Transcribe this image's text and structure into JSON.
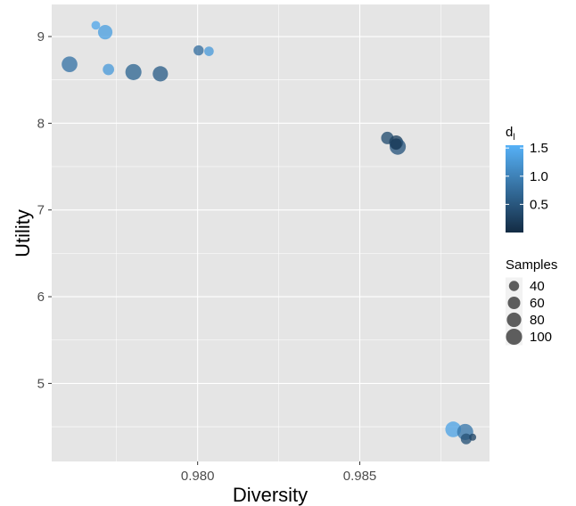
{
  "chart_data": {
    "type": "scatter",
    "xlabel": "Diversity",
    "ylabel": "Utility",
    "xlim": [
      0.9755,
      0.989
    ],
    "ylim": [
      4.1,
      9.37
    ],
    "x_ticks": [
      0.98,
      0.985
    ],
    "x_tick_labels": [
      "0.980",
      "0.985"
    ],
    "y_ticks": [
      5,
      6,
      7,
      8,
      9
    ],
    "y_tick_labels": [
      "5",
      "6",
      "7",
      "8",
      "9"
    ],
    "grid": true,
    "background": "#e5e5e5",
    "legend_position": "right",
    "color_legend": {
      "title_main": "d",
      "title_sub": "l",
      "ticks": [
        0.5,
        1.0,
        1.5
      ],
      "tick_labels": [
        "0.5",
        "1.0",
        "1.5"
      ],
      "range": [
        0.0,
        1.55
      ],
      "low_color": "#132b43",
      "high_color": "#56b1f7"
    },
    "size_legend": {
      "title": "Samples",
      "values": [
        40,
        60,
        80,
        100
      ],
      "labels": [
        "40",
        "60",
        "80",
        "100"
      ],
      "range": [
        20,
        110
      ]
    },
    "points": [
      {
        "x": 0.97686,
        "y": 9.13,
        "color": 1.45,
        "size": 30
      },
      {
        "x": 0.97715,
        "y": 9.05,
        "color": 1.35,
        "size": 80
      },
      {
        "x": 0.97605,
        "y": 8.68,
        "color": 0.85,
        "size": 95
      },
      {
        "x": 0.97725,
        "y": 8.62,
        "color": 1.3,
        "size": 50
      },
      {
        "x": 0.97802,
        "y": 8.59,
        "color": 0.7,
        "size": 100
      },
      {
        "x": 0.97885,
        "y": 8.57,
        "color": 0.6,
        "size": 90
      },
      {
        "x": 0.98003,
        "y": 8.84,
        "color": 0.8,
        "size": 40
      },
      {
        "x": 0.98035,
        "y": 8.83,
        "color": 1.3,
        "size": 35
      },
      {
        "x": 0.98585,
        "y": 7.83,
        "color": 0.4,
        "size": 60
      },
      {
        "x": 0.98612,
        "y": 7.78,
        "color": 0.25,
        "size": 75
      },
      {
        "x": 0.98617,
        "y": 7.73,
        "color": 0.5,
        "size": 100
      },
      {
        "x": 0.98612,
        "y": 7.76,
        "color": 0.2,
        "size": 50
      },
      {
        "x": 0.98788,
        "y": 4.47,
        "color": 1.4,
        "size": 95
      },
      {
        "x": 0.98825,
        "y": 4.44,
        "color": 0.9,
        "size": 100
      },
      {
        "x": 0.98828,
        "y": 4.36,
        "color": 0.45,
        "size": 45
      },
      {
        "x": 0.98848,
        "y": 4.38,
        "color": 0.3,
        "size": 20
      }
    ]
  }
}
